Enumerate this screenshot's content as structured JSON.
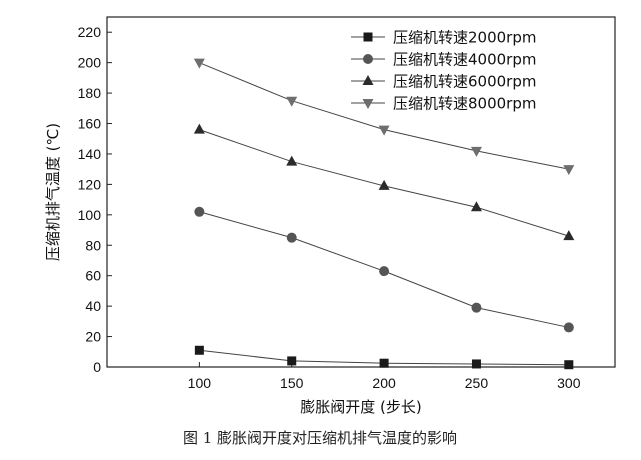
{
  "chart_data": {
    "type": "line",
    "xlabel": "膨胀阀开度 (步长)",
    "ylabel": "压缩机排气温度 (℃)",
    "caption": "图 1  膨胀阀开度对压缩机排气温度的影响",
    "x": [
      100,
      150,
      200,
      250,
      300
    ],
    "xlim": [
      50,
      325
    ],
    "ylim": [
      0,
      230
    ],
    "xticks": [
      100,
      150,
      200,
      250,
      300
    ],
    "yticks": [
      0,
      20,
      40,
      60,
      80,
      100,
      120,
      140,
      160,
      180,
      200,
      220
    ],
    "grid": false,
    "legend_position": "top-right",
    "series": [
      {
        "name": "压缩机转速2000rpm",
        "marker": "square",
        "color": "#1a1a1a",
        "values": [
          11,
          4,
          2.5,
          2,
          1.5
        ]
      },
      {
        "name": "压缩机转速4000rpm",
        "marker": "circle",
        "color": "#555555",
        "values": [
          102,
          85,
          63,
          39,
          26
        ]
      },
      {
        "name": "压缩机转速6000rpm",
        "marker": "triangle-up",
        "color": "#2b2b2b",
        "values": [
          156,
          135,
          119,
          105,
          86
        ]
      },
      {
        "name": "压缩机转速8000rpm",
        "marker": "triangle-down",
        "color": "#6e6e6e",
        "values": [
          200,
          175,
          156,
          142,
          130
        ]
      }
    ]
  }
}
